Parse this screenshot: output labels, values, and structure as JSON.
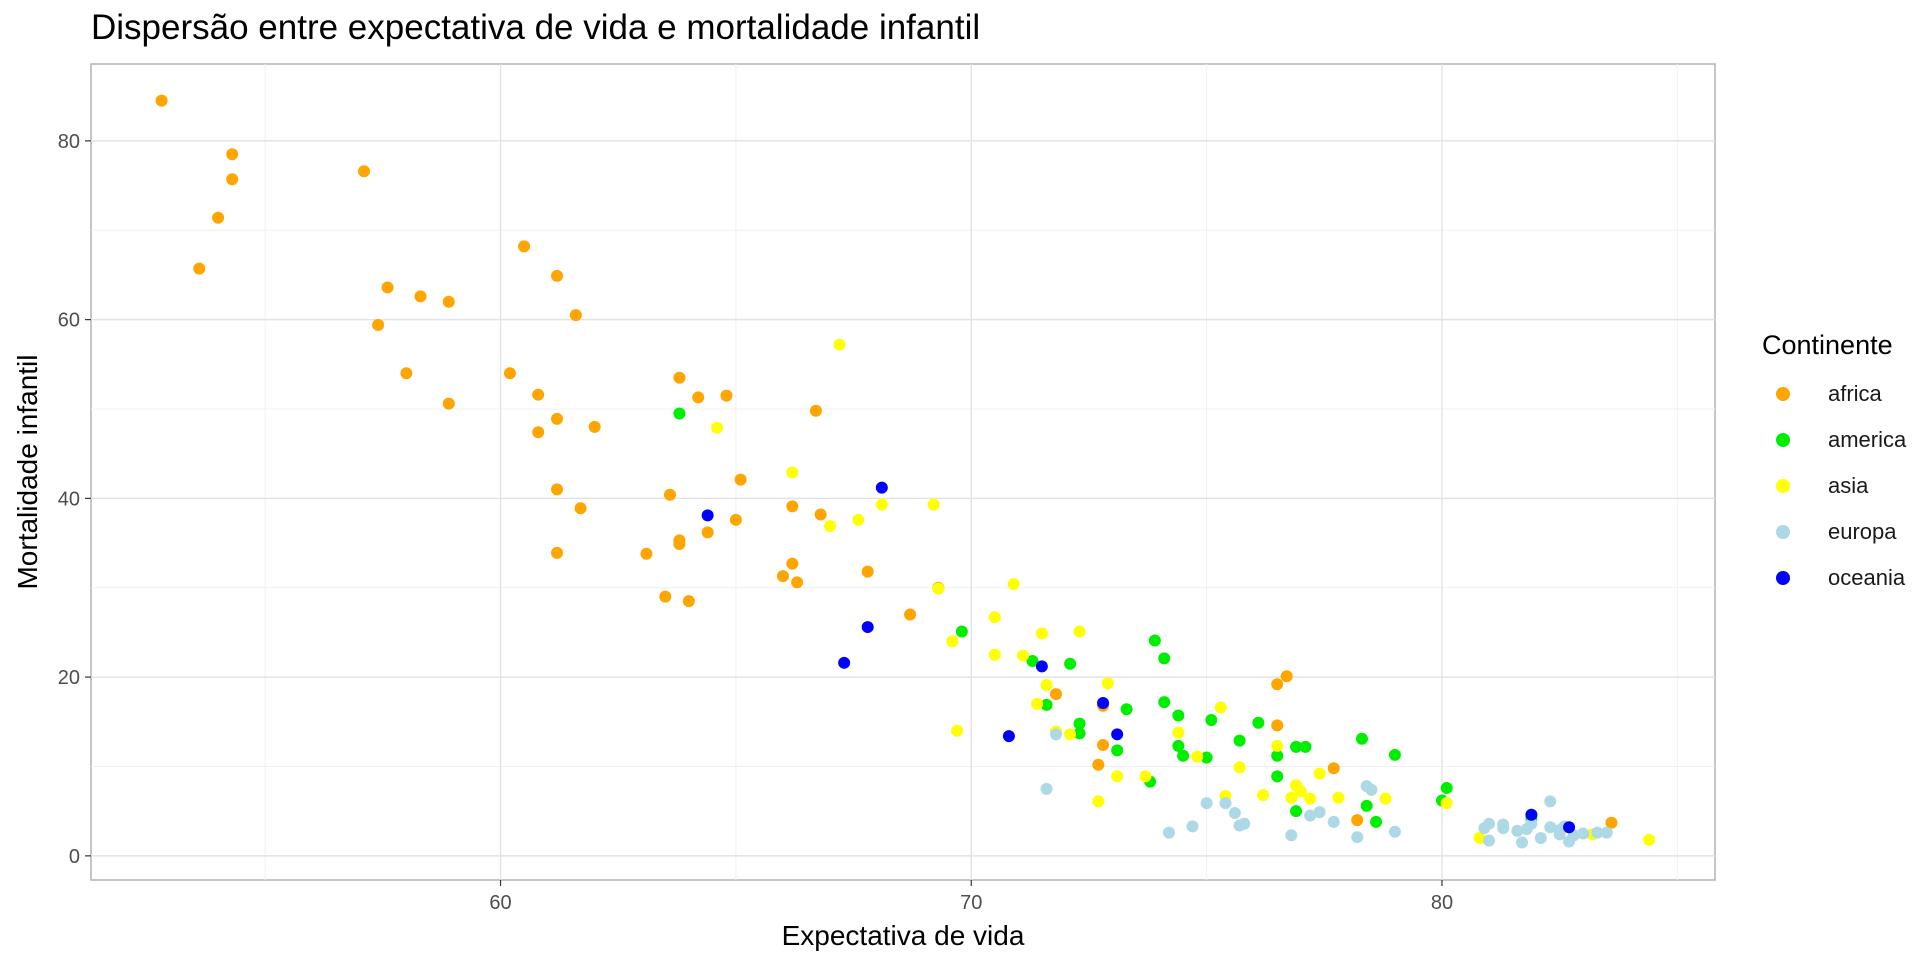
{
  "chart_data": {
    "type": "scatter",
    "title": "Dispersão entre expectativa de vida e mortalidade infantil",
    "xlabel": "Expectativa de vida",
    "ylabel": "Mortalidade infantil",
    "xlim": [
      51.3,
      85.8
    ],
    "ylim": [
      -2.7,
      88.6
    ],
    "x_ticks": [
      60,
      70,
      80
    ],
    "y_ticks": [
      0,
      20,
      40,
      60,
      80
    ],
    "grid": true,
    "legend_title": "Continente",
    "legend_position": "right",
    "series": [
      {
        "name": "africa",
        "color": "#FFA500",
        "points": [
          [
            52.8,
            84.5
          ],
          [
            54.3,
            78.5
          ],
          [
            54.3,
            75.7
          ],
          [
            54.0,
            71.4
          ],
          [
            53.6,
            65.7
          ],
          [
            57.1,
            76.6
          ],
          [
            57.6,
            63.6
          ],
          [
            57.4,
            59.4
          ],
          [
            58.3,
            62.6
          ],
          [
            58.9,
            62.0
          ],
          [
            58.0,
            54.0
          ],
          [
            58.9,
            50.6
          ],
          [
            60.5,
            68.2
          ],
          [
            60.2,
            54.0
          ],
          [
            60.8,
            51.6
          ],
          [
            60.8,
            47.4
          ],
          [
            61.2,
            64.9
          ],
          [
            61.6,
            60.5
          ],
          [
            61.2,
            48.9
          ],
          [
            62.0,
            48.0
          ],
          [
            61.2,
            41.0
          ],
          [
            61.7,
            38.9
          ],
          [
            61.2,
            33.9
          ],
          [
            63.8,
            53.5
          ],
          [
            64.2,
            51.3
          ],
          [
            64.8,
            51.5
          ],
          [
            66.7,
            49.8
          ],
          [
            63.6,
            40.4
          ],
          [
            63.8,
            35.3
          ],
          [
            63.8,
            34.9
          ],
          [
            64.4,
            36.2
          ],
          [
            65.1,
            42.1
          ],
          [
            65.0,
            37.6
          ],
          [
            63.1,
            33.8
          ],
          [
            63.5,
            29.0
          ],
          [
            64.0,
            28.5
          ],
          [
            66.2,
            39.1
          ],
          [
            66.8,
            38.2
          ],
          [
            66.2,
            32.7
          ],
          [
            66.0,
            31.3
          ],
          [
            66.3,
            30.6
          ],
          [
            67.8,
            31.8
          ],
          [
            69.3,
            30.0
          ],
          [
            68.7,
            27.0
          ],
          [
            71.8,
            18.1
          ],
          [
            72.8,
            16.8
          ],
          [
            72.8,
            12.4
          ],
          [
            72.7,
            10.2
          ],
          [
            76.7,
            20.1
          ],
          [
            76.5,
            19.2
          ],
          [
            76.5,
            14.6
          ],
          [
            77.7,
            9.8
          ],
          [
            78.2,
            4.0
          ],
          [
            83.6,
            3.7
          ]
        ]
      },
      {
        "name": "america",
        "color": "#00EE00",
        "points": [
          [
            63.8,
            49.5
          ],
          [
            69.8,
            25.1
          ],
          [
            71.3,
            21.8
          ],
          [
            72.1,
            21.5
          ],
          [
            71.6,
            16.9
          ],
          [
            72.3,
            14.8
          ],
          [
            72.3,
            13.7
          ],
          [
            73.3,
            16.4
          ],
          [
            73.1,
            11.8
          ],
          [
            73.8,
            8.3
          ],
          [
            73.9,
            24.1
          ],
          [
            74.1,
            22.1
          ],
          [
            74.1,
            17.2
          ],
          [
            74.4,
            15.7
          ],
          [
            74.4,
            12.3
          ],
          [
            74.5,
            11.2
          ],
          [
            75.0,
            11.0
          ],
          [
            75.1,
            15.2
          ],
          [
            75.7,
            12.9
          ],
          [
            76.1,
            14.9
          ],
          [
            76.5,
            11.2
          ],
          [
            76.5,
            8.9
          ],
          [
            76.9,
            12.2
          ],
          [
            77.1,
            12.2
          ],
          [
            76.9,
            5.0
          ],
          [
            78.3,
            13.1
          ],
          [
            78.4,
            5.6
          ],
          [
            78.6,
            3.8
          ],
          [
            79.0,
            11.3
          ],
          [
            80.0,
            6.2
          ],
          [
            80.1,
            7.6
          ],
          [
            81.9,
            4.2
          ]
        ]
      },
      {
        "name": "asia",
        "color": "#FFFF00",
        "points": [
          [
            67.2,
            57.2
          ],
          [
            64.6,
            47.9
          ],
          [
            66.2,
            42.9
          ],
          [
            68.1,
            39.3
          ],
          [
            69.2,
            39.3
          ],
          [
            67.6,
            37.6
          ],
          [
            67.0,
            36.9
          ],
          [
            69.3,
            29.9
          ],
          [
            70.9,
            30.4
          ],
          [
            69.6,
            24.0
          ],
          [
            70.5,
            26.7
          ],
          [
            70.5,
            22.5
          ],
          [
            71.1,
            22.4
          ],
          [
            71.5,
            24.9
          ],
          [
            72.3,
            25.1
          ],
          [
            71.6,
            19.1
          ],
          [
            71.4,
            17.0
          ],
          [
            72.9,
            19.3
          ],
          [
            69.7,
            14.0
          ],
          [
            71.8,
            13.9
          ],
          [
            72.1,
            13.6
          ],
          [
            73.1,
            8.9
          ],
          [
            73.7,
            8.9
          ],
          [
            72.7,
            6.1
          ],
          [
            74.4,
            13.8
          ],
          [
            74.8,
            11.1
          ],
          [
            75.3,
            16.6
          ],
          [
            75.4,
            6.7
          ],
          [
            75.7,
            9.9
          ],
          [
            76.2,
            6.8
          ],
          [
            76.5,
            12.3
          ],
          [
            76.8,
            6.5
          ],
          [
            76.9,
            7.9
          ],
          [
            77.0,
            7.2
          ],
          [
            77.2,
            6.4
          ],
          [
            77.4,
            9.2
          ],
          [
            77.8,
            6.5
          ],
          [
            78.5,
            7.4
          ],
          [
            78.8,
            6.4
          ],
          [
            80.1,
            5.9
          ],
          [
            80.8,
            2.0
          ],
          [
            83.2,
            2.4
          ],
          [
            84.4,
            1.8
          ]
        ]
      },
      {
        "name": "europa",
        "color": "#ADD8E6",
        "points": [
          [
            71.6,
            7.5
          ],
          [
            71.8,
            13.6
          ],
          [
            74.2,
            2.6
          ],
          [
            74.7,
            3.3
          ],
          [
            75.0,
            5.9
          ],
          [
            75.4,
            5.9
          ],
          [
            75.6,
            4.8
          ],
          [
            75.7,
            3.4
          ],
          [
            75.8,
            3.6
          ],
          [
            76.8,
            2.3
          ],
          [
            77.2,
            4.5
          ],
          [
            77.4,
            4.9
          ],
          [
            77.7,
            3.8
          ],
          [
            78.2,
            2.1
          ],
          [
            78.4,
            7.8
          ],
          [
            78.5,
            7.4
          ],
          [
            79.0,
            2.7
          ],
          [
            80.9,
            3.1
          ],
          [
            81.0,
            3.6
          ],
          [
            81.0,
            1.7
          ],
          [
            81.3,
            3.5
          ],
          [
            81.3,
            3.1
          ],
          [
            81.6,
            2.8
          ],
          [
            81.7,
            1.5
          ],
          [
            81.8,
            3.0
          ],
          [
            81.9,
            3.6
          ],
          [
            82.1,
            2.0
          ],
          [
            82.3,
            6.1
          ],
          [
            82.3,
            3.2
          ],
          [
            82.5,
            2.9
          ],
          [
            82.5,
            2.4
          ],
          [
            82.6,
            3.3
          ],
          [
            82.7,
            1.6
          ],
          [
            82.8,
            2.3
          ],
          [
            83.0,
            2.5
          ],
          [
            83.3,
            2.6
          ],
          [
            83.5,
            2.6
          ]
        ]
      },
      {
        "name": "oceania",
        "color": "#0000FF",
        "points": [
          [
            64.4,
            38.1
          ],
          [
            68.1,
            41.2
          ],
          [
            67.8,
            25.6
          ],
          [
            67.3,
            21.6
          ],
          [
            71.5,
            21.2
          ],
          [
            70.8,
            13.4
          ],
          [
            72.8,
            17.1
          ],
          [
            73.1,
            13.6
          ],
          [
            81.9,
            4.6
          ],
          [
            82.7,
            3.2
          ]
        ]
      }
    ]
  }
}
